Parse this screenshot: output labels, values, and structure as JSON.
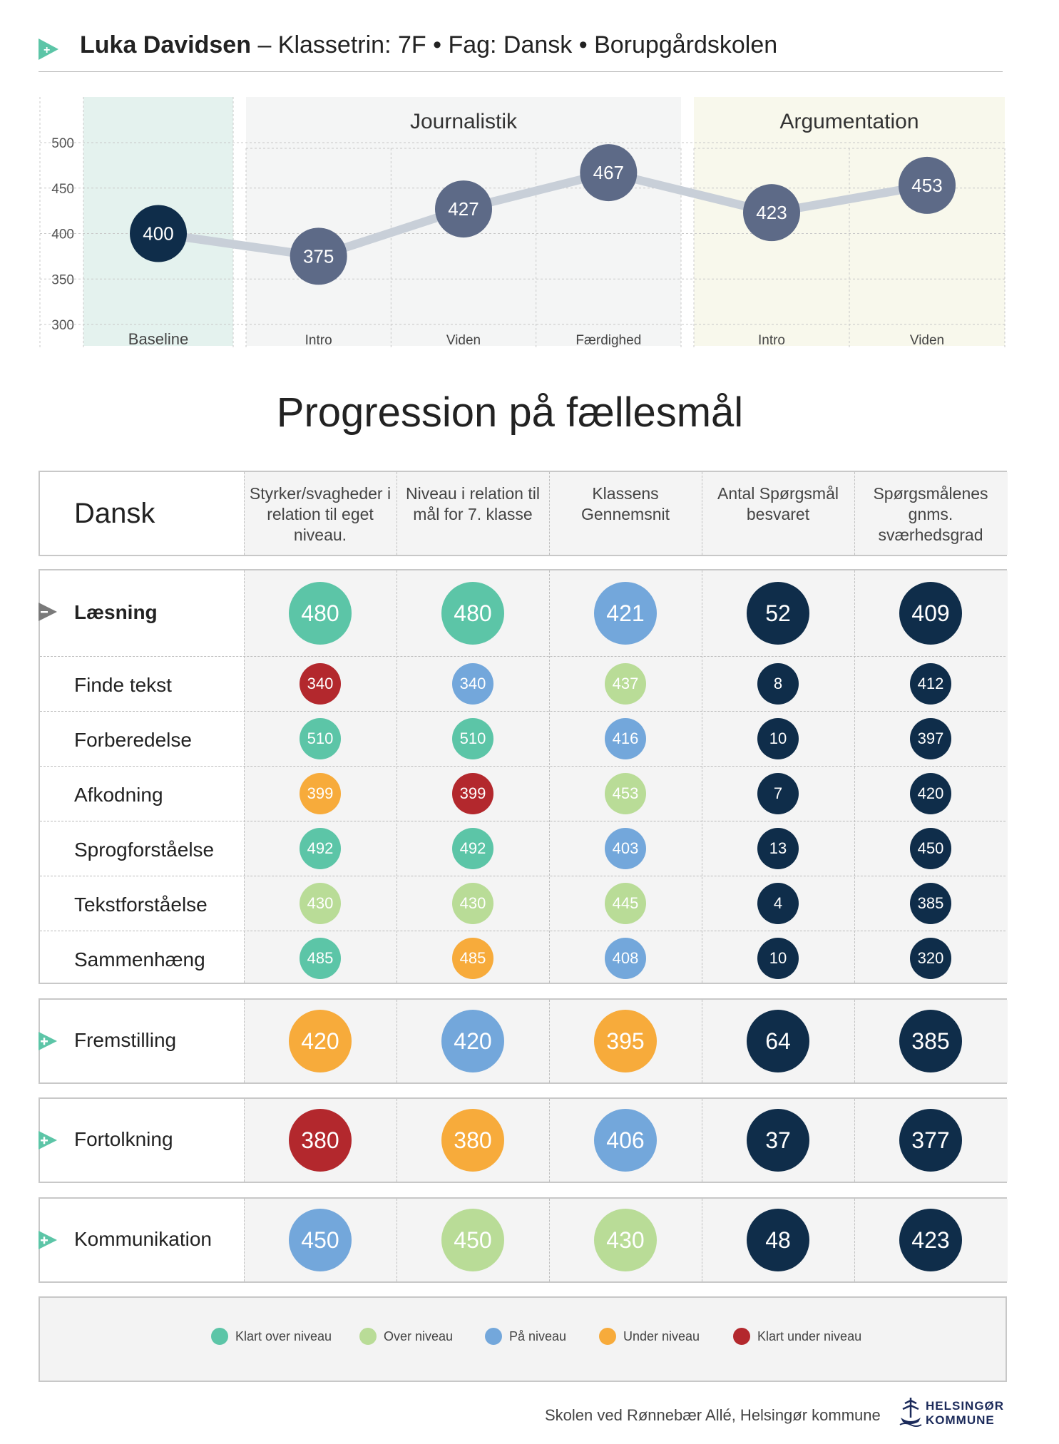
{
  "header": {
    "name": "Luka Davidsen",
    "details": "– Klassetrin: 7F • Fag: Dansk • Borupgårdskolen"
  },
  "chart_data": {
    "type": "line",
    "y_ticks": [
      300,
      350,
      400,
      450,
      500
    ],
    "ylim": [
      300,
      500
    ],
    "groups": [
      {
        "label": "",
        "categories": [
          "Baseline"
        ]
      },
      {
        "label": "Journalistik",
        "categories": [
          "Intro",
          "Viden",
          "Færdighed"
        ]
      },
      {
        "label": "Argumentation",
        "categories": [
          "Intro",
          "Viden"
        ]
      }
    ],
    "points": [
      {
        "category": "Baseline",
        "value": 400
      },
      {
        "category": "Intro",
        "value": 375
      },
      {
        "category": "Viden",
        "value": 427
      },
      {
        "category": "Færdighed",
        "value": 467
      },
      {
        "category": "Intro",
        "value": 423
      },
      {
        "category": "Viden",
        "value": 453
      }
    ],
    "colors": {
      "baseline_point": "#0f2d4a",
      "point": "#5d6a87",
      "line": "#c8cfd8",
      "baseline_band": "#e4f2ee",
      "journalistik_band": "#f4f5f5",
      "argumentation_band": "#f8f8ec"
    }
  },
  "section_title": "Progression på fællesmål",
  "table": {
    "subject": "Dansk",
    "columns": [
      "Styrker/svagheder i relation til eget niveau.",
      "Niveau i relation til mål for 7. klasse",
      "Klassens Gennemsnit",
      "Antal Spørgsmål besvaret",
      "Spørgsmålenes gnms. sværhedsgrad"
    ],
    "groups": [
      {
        "label": "Læsning",
        "expanded": true,
        "values": [
          {
            "v": "480",
            "c": "green"
          },
          {
            "v": "480",
            "c": "green"
          },
          {
            "v": "421",
            "c": "blue"
          },
          {
            "v": "52",
            "c": "navy"
          },
          {
            "v": "409",
            "c": "navy"
          }
        ],
        "rows": [
          {
            "label": "Finde tekst",
            "values": [
              {
                "v": "340",
                "c": "red"
              },
              {
                "v": "340",
                "c": "blue"
              },
              {
                "v": "437",
                "c": "lightgreen"
              },
              {
                "v": "8",
                "c": "navy"
              },
              {
                "v": "412",
                "c": "navy"
              }
            ]
          },
          {
            "label": "Forberedelse",
            "values": [
              {
                "v": "510",
                "c": "green"
              },
              {
                "v": "510",
                "c": "green"
              },
              {
                "v": "416",
                "c": "blue"
              },
              {
                "v": "10",
                "c": "navy"
              },
              {
                "v": "397",
                "c": "navy"
              }
            ]
          },
          {
            "label": "Afkodning",
            "values": [
              {
                "v": "399",
                "c": "orange"
              },
              {
                "v": "399",
                "c": "red"
              },
              {
                "v": "453",
                "c": "lightgreen"
              },
              {
                "v": "7",
                "c": "navy"
              },
              {
                "v": "420",
                "c": "navy"
              }
            ]
          },
          {
            "label": "Sprogforståelse",
            "values": [
              {
                "v": "492",
                "c": "green"
              },
              {
                "v": "492",
                "c": "green"
              },
              {
                "v": "403",
                "c": "blue"
              },
              {
                "v": "13",
                "c": "navy"
              },
              {
                "v": "450",
                "c": "navy"
              }
            ]
          },
          {
            "label": "Tekstforståelse",
            "values": [
              {
                "v": "430",
                "c": "lightgreen"
              },
              {
                "v": "430",
                "c": "lightgreen"
              },
              {
                "v": "445",
                "c": "lightgreen"
              },
              {
                "v": "4",
                "c": "navy"
              },
              {
                "v": "385",
                "c": "navy"
              }
            ]
          },
          {
            "label": "Sammenhæng",
            "values": [
              {
                "v": "485",
                "c": "green"
              },
              {
                "v": "485",
                "c": "orange"
              },
              {
                "v": "408",
                "c": "blue"
              },
              {
                "v": "10",
                "c": "navy"
              },
              {
                "v": "320",
                "c": "navy"
              }
            ]
          }
        ]
      },
      {
        "label": "Fremstilling",
        "expanded": false,
        "values": [
          {
            "v": "420",
            "c": "orange"
          },
          {
            "v": "420",
            "c": "blue"
          },
          {
            "v": "395",
            "c": "orange"
          },
          {
            "v": "64",
            "c": "navy"
          },
          {
            "v": "385",
            "c": "navy"
          }
        ],
        "rows": []
      },
      {
        "label": "Fortolkning",
        "expanded": false,
        "values": [
          {
            "v": "380",
            "c": "red"
          },
          {
            "v": "380",
            "c": "orange"
          },
          {
            "v": "406",
            "c": "blue"
          },
          {
            "v": "37",
            "c": "navy"
          },
          {
            "v": "377",
            "c": "navy"
          }
        ],
        "rows": []
      },
      {
        "label": "Kommunikation",
        "expanded": false,
        "values": [
          {
            "v": "450",
            "c": "blue"
          },
          {
            "v": "450",
            "c": "lightgreen"
          },
          {
            "v": "430",
            "c": "lightgreen"
          },
          {
            "v": "48",
            "c": "navy"
          },
          {
            "v": "423",
            "c": "navy"
          }
        ],
        "rows": []
      }
    ]
  },
  "legend": [
    {
      "label": "Klart over niveau",
      "c": "green"
    },
    {
      "label": "Over niveau",
      "c": "lightgreen"
    },
    {
      "label": "På niveau",
      "c": "blue"
    },
    {
      "label": "Under niveau",
      "c": "orange"
    },
    {
      "label": "Klart under niveau",
      "c": "red"
    }
  ],
  "colors": {
    "green": "#5cc5a7",
    "lightgreen": "#b9dc97",
    "blue": "#73a7db",
    "orange": "#f7ab3b",
    "red": "#b3282d",
    "navy": "#0f2d4a",
    "accent": "#5cc5a7"
  },
  "footer": {
    "text": "Skolen ved Rønnebær Allé, Helsingør kommune",
    "logo_line1": "HELSINGØR",
    "logo_line2": "KOMMUNE"
  }
}
